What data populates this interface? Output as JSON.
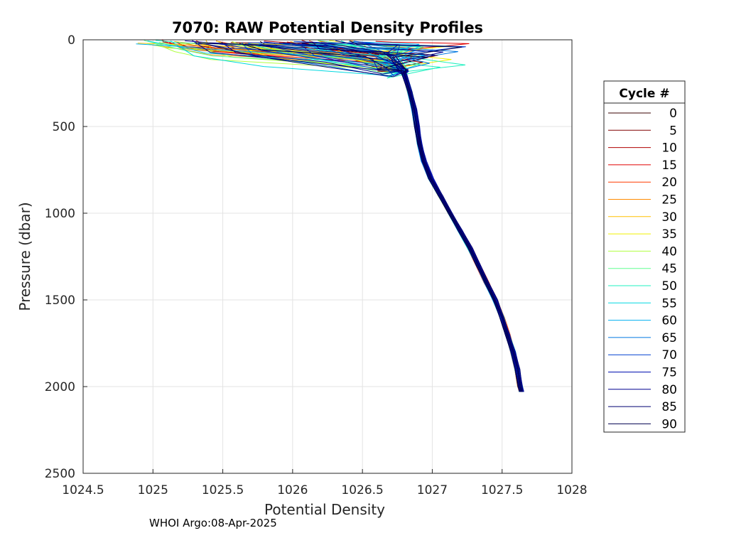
{
  "chart_data": {
    "type": "line",
    "title": "7070: RAW Potential Density Profiles",
    "xlabel": "Potential Density",
    "ylabel": "Pressure (dbar)",
    "xlim": [
      1024.5,
      1028
    ],
    "ylim": [
      0,
      2500
    ],
    "y_reversed": true,
    "grid": true,
    "x_ticks": [
      1024.5,
      1025,
      1025.5,
      1026,
      1026.5,
      1027,
      1027.5,
      1028
    ],
    "x_tick_labels": [
      "1024.5",
      "1025",
      "1025.5",
      "1026",
      "1026.5",
      "1027",
      "1027.5",
      "1028"
    ],
    "y_ticks": [
      0,
      500,
      1000,
      1500,
      2000,
      2500
    ],
    "y_tick_labels": [
      "0",
      "500",
      "1000",
      "1500",
      "2000",
      "2500"
    ],
    "legend": {
      "title": "Cycle #",
      "placement": "right-outside",
      "entries": [
        "0",
        "5",
        "10",
        "15",
        "20",
        "25",
        "30",
        "35",
        "40",
        "45",
        "50",
        "55",
        "60",
        "65",
        "70",
        "75",
        "80",
        "85",
        "90"
      ],
      "colors": [
        "#3a0000",
        "#800000",
        "#b00000",
        "#e00000",
        "#ff3a00",
        "#ff8a00",
        "#ffc000",
        "#f0f000",
        "#b0ff40",
        "#60ff90",
        "#20f0c0",
        "#00d8e0",
        "#00b0f0",
        "#0078e0",
        "#0040d0",
        "#0010b0",
        "#000090",
        "#000070",
        "#000050"
      ]
    },
    "series_shape": {
      "description": "Deep profile shared by all cycles (pressure dbar, potential density)",
      "deep_profile": [
        [
          200,
          1026.8
        ],
        [
          300,
          1026.84
        ],
        [
          400,
          1026.87
        ],
        [
          500,
          1026.89
        ],
        [
          600,
          1026.91
        ],
        [
          700,
          1026.94
        ],
        [
          800,
          1026.99
        ],
        [
          900,
          1027.06
        ],
        [
          1000,
          1027.13
        ],
        [
          1100,
          1027.2
        ],
        [
          1200,
          1027.27
        ],
        [
          1300,
          1027.33
        ],
        [
          1400,
          1027.39
        ],
        [
          1500,
          1027.45
        ],
        [
          1600,
          1027.5
        ],
        [
          1700,
          1027.54
        ],
        [
          1800,
          1027.58
        ],
        [
          1900,
          1027.61
        ],
        [
          2000,
          1027.63
        ],
        [
          2030,
          1027.64
        ]
      ],
      "surface_density_range": [
        1025.0,
        1026.7
      ],
      "mixed_layer_pressure_range": [
        0,
        180
      ]
    },
    "footer": "WHOI Argo:08-Apr-2025"
  }
}
